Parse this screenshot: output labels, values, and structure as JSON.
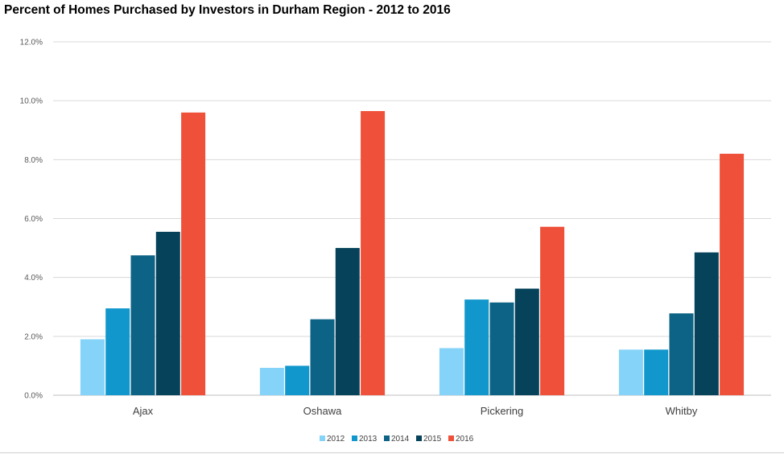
{
  "chart_data": {
    "type": "bar",
    "title": "Percent of Homes Purchased by Investors in Durham Region - 2012 to 2016",
    "xlabel": "",
    "ylabel": "",
    "categories": [
      "Ajax",
      "Oshawa",
      "Pickering",
      "Whitby"
    ],
    "series": [
      {
        "name": "2012",
        "color": "#85d3f8",
        "values": [
          1.9,
          0.93,
          1.6,
          1.55
        ]
      },
      {
        "name": "2013",
        "color": "#1297cc",
        "values": [
          2.95,
          1.0,
          3.25,
          1.55
        ]
      },
      {
        "name": "2014",
        "color": "#0d6385",
        "values": [
          4.75,
          2.58,
          3.15,
          2.78
        ]
      },
      {
        "name": "2015",
        "color": "#06425a",
        "values": [
          5.55,
          5.0,
          3.62,
          4.85
        ]
      },
      {
        "name": "2016",
        "color": "#ef5039",
        "values": [
          9.6,
          9.65,
          5.72,
          8.2
        ]
      }
    ],
    "ylim": [
      0,
      12
    ],
    "y_ticks": [
      "0.0%",
      "2.0%",
      "4.0%",
      "6.0%",
      "8.0%",
      "10.0%",
      "12.0%"
    ],
    "y_tick_values": [
      0,
      2,
      4,
      6,
      8,
      10,
      12
    ],
    "grid": true,
    "legend_position": "bottom-center"
  }
}
